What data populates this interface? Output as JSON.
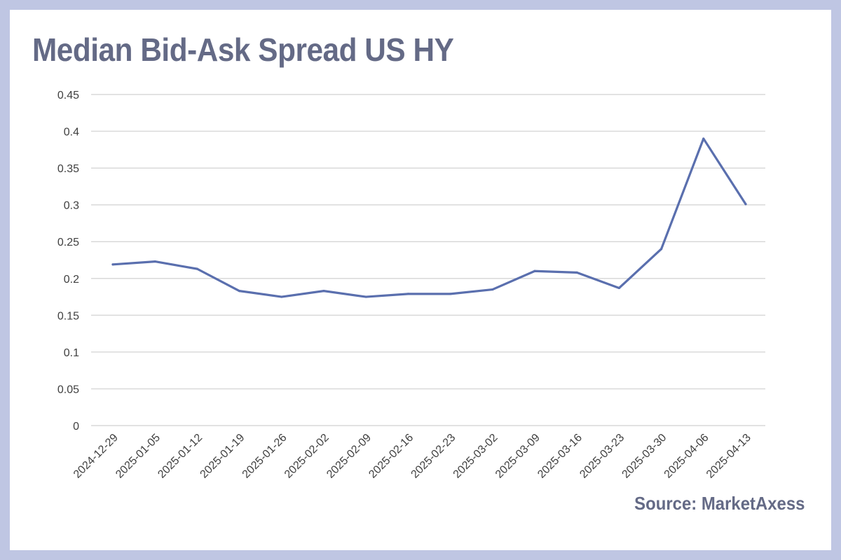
{
  "title": "Median Bid-Ask Spread US HY",
  "source": "Source: MarketAxess",
  "colors": {
    "background_frame": "#bfc6e3",
    "panel": "#ffffff",
    "title": "#646a86",
    "line": "#5a6fae",
    "grid": "#d9d9d9",
    "tick_text": "#404040"
  },
  "chart_data": {
    "type": "line",
    "title": "Median Bid-Ask Spread US HY",
    "xlabel": "",
    "ylabel": "",
    "ylim": [
      0,
      0.45
    ],
    "grid": true,
    "yticks": [
      "0",
      "0.05",
      "0.1",
      "0.15",
      "0.2",
      "0.25",
      "0.3",
      "0.35",
      "0.4",
      "0.45"
    ],
    "categories": [
      "2024-12-29",
      "2025-01-05",
      "2025-01-12",
      "2025-01-19",
      "2025-01-26",
      "2025-02-02",
      "2025-02-09",
      "2025-02-16",
      "2025-02-23",
      "2025-03-02",
      "2025-03-09",
      "2025-03-16",
      "2025-03-23",
      "2025-03-30",
      "2025-04-06",
      "2025-04-13"
    ],
    "series": [
      {
        "values": [
          0.219,
          0.223,
          0.213,
          0.183,
          0.175,
          0.183,
          0.175,
          0.179,
          0.179,
          0.185,
          0.21,
          0.208,
          0.187,
          0.24,
          0.39,
          0.301
        ]
      }
    ]
  }
}
